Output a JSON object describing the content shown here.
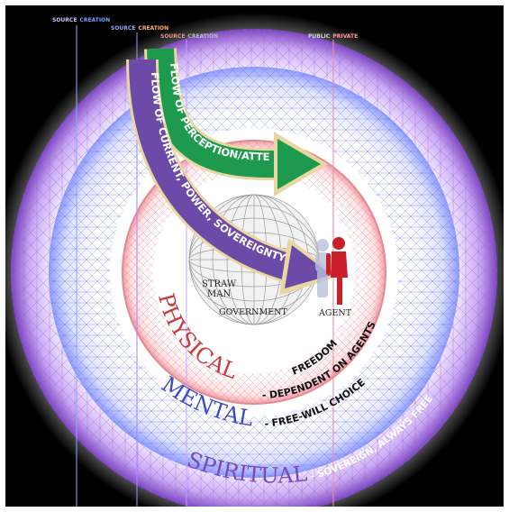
{
  "top_labels": {
    "l1": {
      "source": "SOURCE",
      "creation": "CREATION"
    },
    "l2": {
      "source": "SOURCE",
      "creation": "CREATION"
    },
    "l3": {
      "source": "SOURCE",
      "creation": "CREATION"
    },
    "l4": {
      "public": "PUBLIC",
      "private": "PRIVATE"
    }
  },
  "flows": {
    "perception": "FLOW OF PERCEPTION/ATTENTION",
    "current": "FLOW OF CURRENT, POWER, SOVEREIGNTY"
  },
  "center": {
    "straw": "STRAW",
    "man": "MAN",
    "government": "GOVERNMENT",
    "agent": "AGENT"
  },
  "rings": {
    "physical": {
      "name": "PHYSICAL",
      "line1": "FREEDOM",
      "line2": "- DEPENDENT ON AGENTS"
    },
    "mental": {
      "name": "MENTAL",
      "desc": "- FREE-WILL CHOICE"
    },
    "spiritual": {
      "name": "SPIRITUAL",
      "desc": "- SOVEREIGN, ALWAYS FREE"
    }
  },
  "colors": {
    "background": "#000000",
    "spiritual": "#8a55c8",
    "mental": "#3b4ec0",
    "physical": "#c83a40",
    "perception_arrow": "#1e9a4e",
    "current_arrow": "#6b4aa8",
    "agent_figure": "#c81f2a",
    "source_line": "#8fa2ff",
    "private_line": "#f08aa0"
  }
}
